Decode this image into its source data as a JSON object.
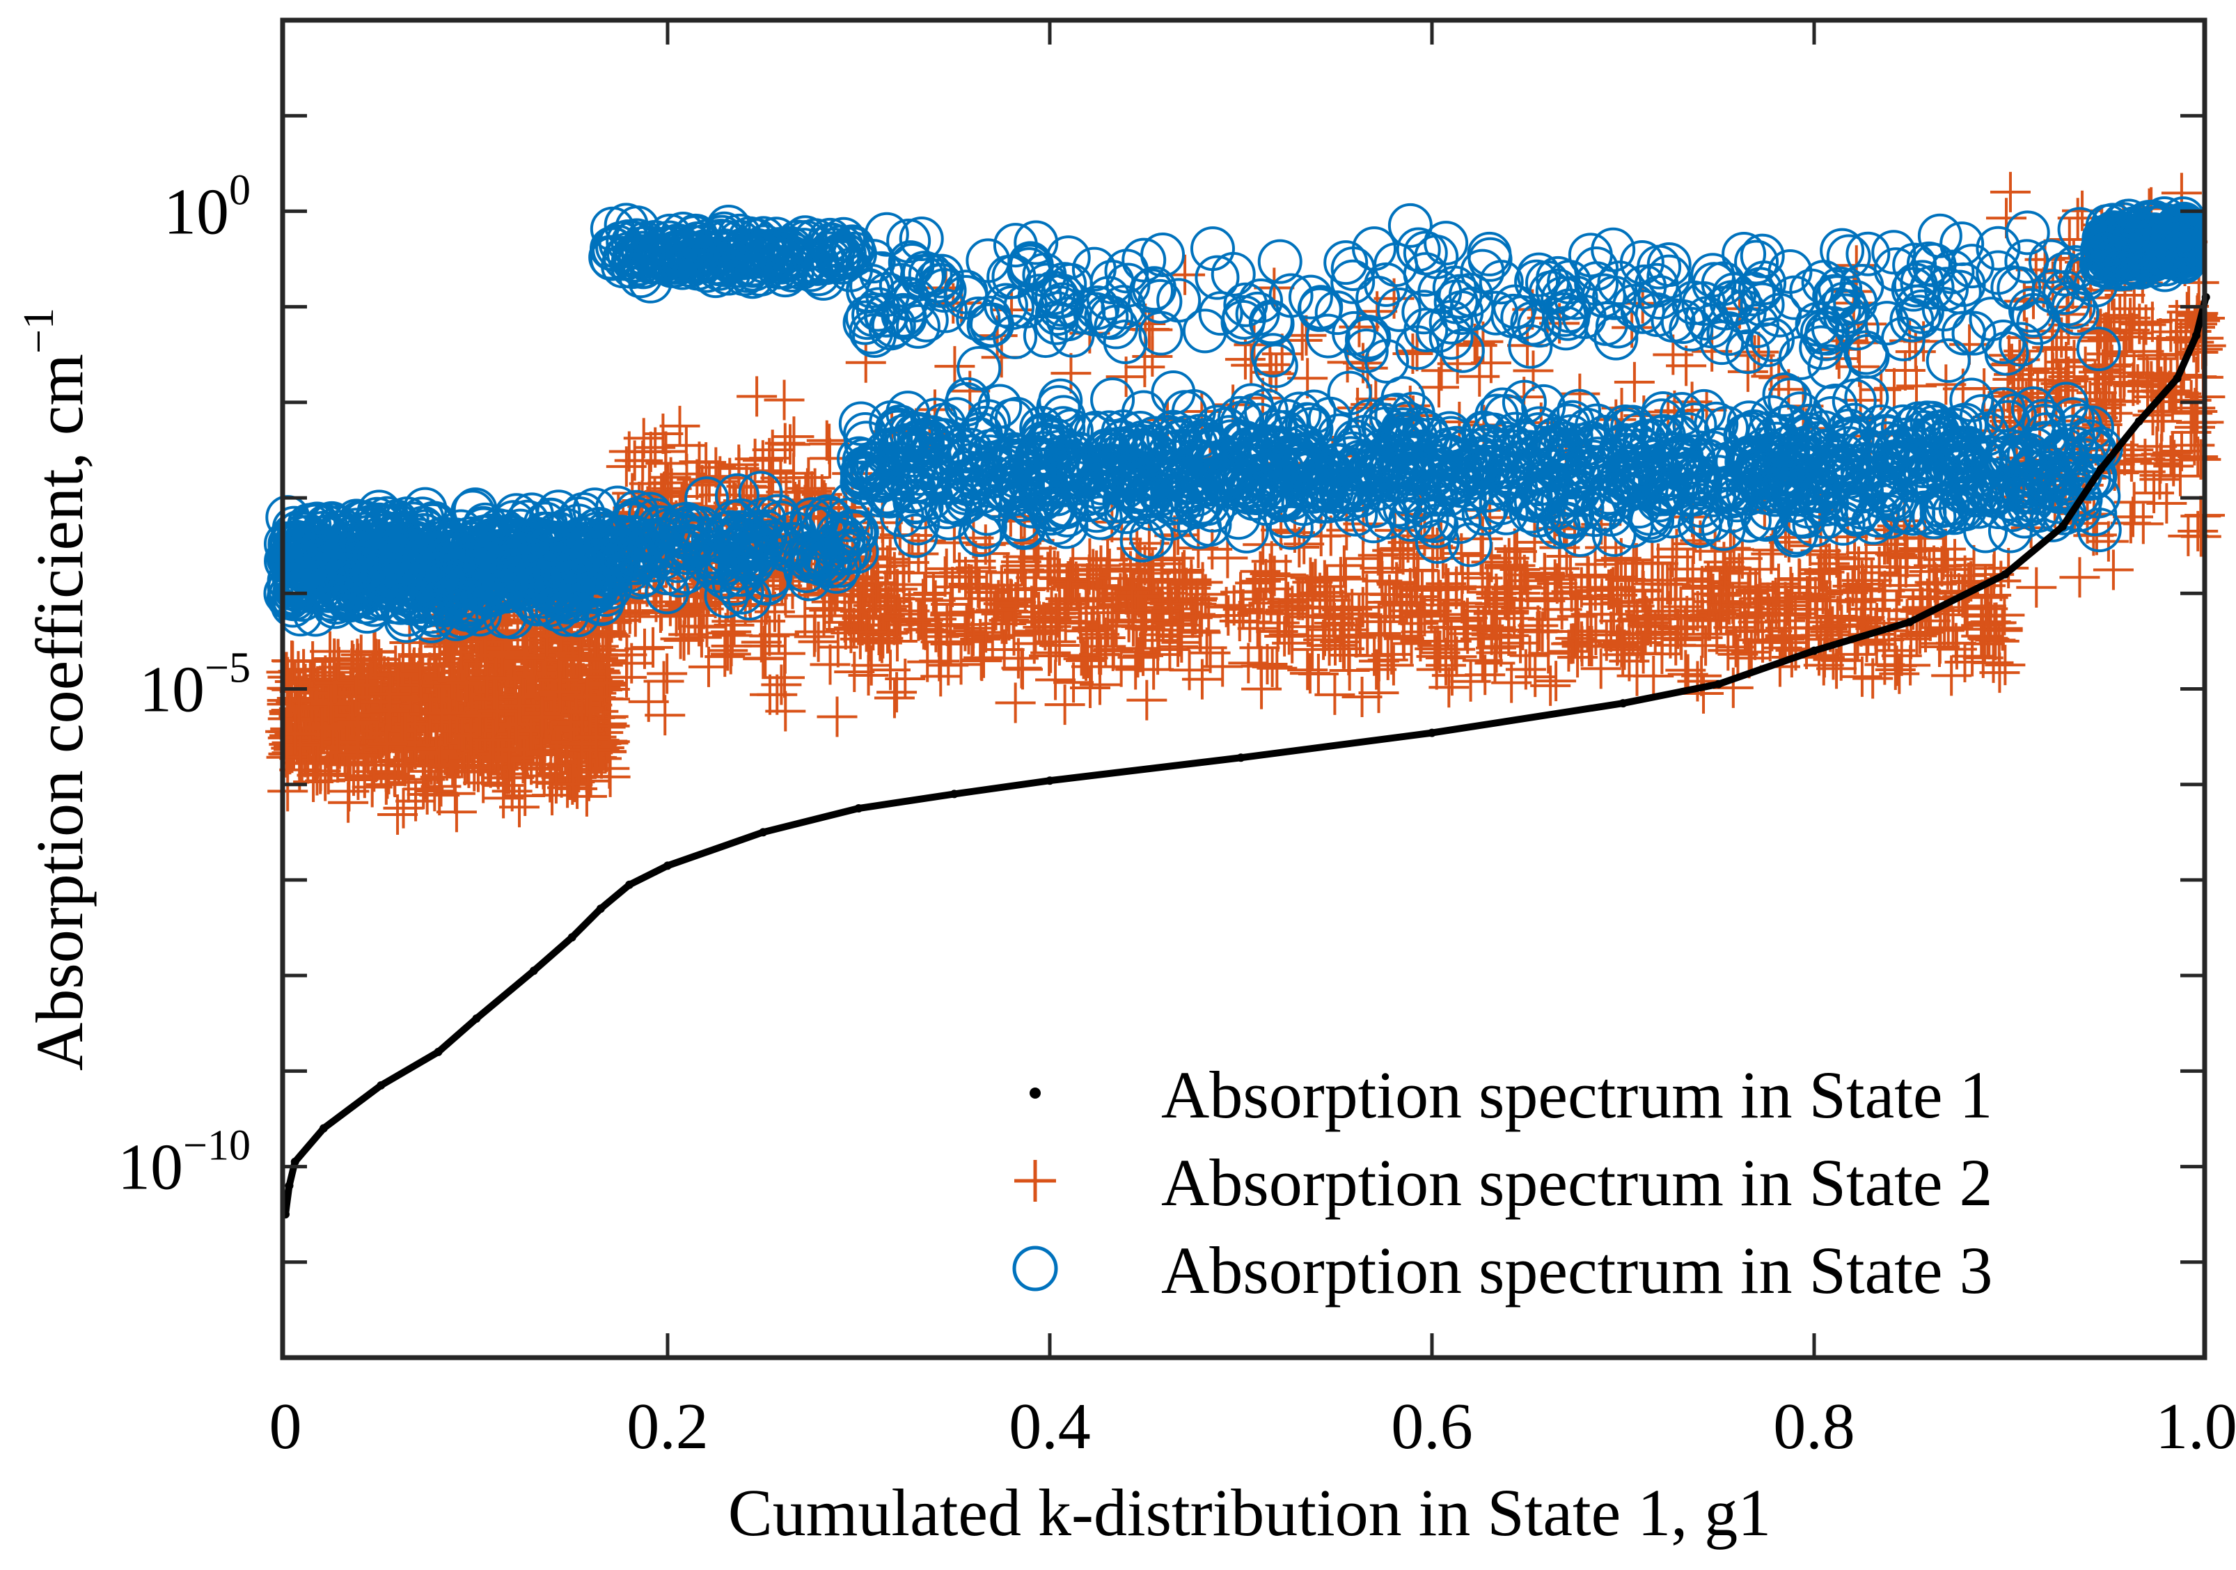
{
  "chart_data": {
    "type": "scatter",
    "title": "",
    "xlabel": "Cumulated k-distribution in State 1, g1",
    "ylabel": "Absorption coefficient, cm",
    "ylabel_exp": "−1",
    "xlim": [
      0,
      1.005
    ],
    "ylim_log10": [
      -12,
      2
    ],
    "yscale": "log",
    "grid": false,
    "legend_position": "bottom-right",
    "x_ticks": [
      {
        "value": 0,
        "label": "0"
      },
      {
        "value": 0.2,
        "label": "0.2"
      },
      {
        "value": 0.4,
        "label": "0.4"
      },
      {
        "value": 0.6,
        "label": "0.6"
      },
      {
        "value": 0.8,
        "label": "0.8"
      },
      {
        "value": 1.0,
        "label": "1.0"
      }
    ],
    "y_ticks": [
      {
        "log10": 0,
        "base": "10",
        "exp": "0"
      },
      {
        "log10": -5,
        "base": "10",
        "exp": "−5"
      },
      {
        "log10": -10,
        "base": "10",
        "exp": "−10"
      }
    ],
    "series": [
      {
        "name": "Absorption spectrum in State 1",
        "marker": "dot",
        "color": "#000000",
        "points_log10": [
          [
            0,
            -10.5
          ],
          [
            0.002,
            -10.2
          ],
          [
            0.005,
            -9.95
          ],
          [
            0.02,
            -9.6
          ],
          [
            0.05,
            -9.15
          ],
          [
            0.08,
            -8.8
          ],
          [
            0.1,
            -8.45
          ],
          [
            0.13,
            -7.95
          ],
          [
            0.15,
            -7.6
          ],
          [
            0.165,
            -7.3
          ],
          [
            0.18,
            -7.05
          ],
          [
            0.2,
            -6.85
          ],
          [
            0.25,
            -6.5
          ],
          [
            0.3,
            -6.25
          ],
          [
            0.35,
            -6.1
          ],
          [
            0.4,
            -5.96
          ],
          [
            0.5,
            -5.72
          ],
          [
            0.6,
            -5.46
          ],
          [
            0.7,
            -5.15
          ],
          [
            0.75,
            -4.95
          ],
          [
            0.8,
            -4.6
          ],
          [
            0.85,
            -4.3
          ],
          [
            0.9,
            -3.8
          ],
          [
            0.93,
            -3.3
          ],
          [
            0.95,
            -2.7
          ],
          [
            0.97,
            -2.2
          ],
          [
            0.99,
            -1.75
          ],
          [
            1.0,
            -1.3
          ],
          [
            1.005,
            -0.9
          ]
        ]
      },
      {
        "name": "Absorption spectrum in State 2",
        "marker": "plus",
        "color": "#D95319",
        "envelope_log10": [
          {
            "x": [
              0,
              0.17
            ],
            "y": [
              -6.4,
              -4.3
            ],
            "n": 900
          },
          {
            "x": [
              0.08,
              0.17
            ],
            "y": [
              -5.6,
              -3.5
            ],
            "n": 250
          },
          {
            "x": [
              0.17,
              0.3
            ],
            "y": [
              -5.6,
              -1.6
            ],
            "n": 350
          },
          {
            "x": [
              0.3,
              0.9
            ],
            "y": [
              -5.3,
              -3.0
            ],
            "n": 1000
          },
          {
            "x": [
              0.3,
              0.9
            ],
            "y": [
              -3.0,
              -0.3
            ],
            "n": 120
          },
          {
            "x": [
              0.9,
              1.005
            ],
            "y": [
              -4.2,
              0.6
            ],
            "n": 260
          }
        ]
      },
      {
        "name": "Absorption spectrum in State 3",
        "marker": "circle",
        "color": "#0072BD",
        "envelope_log10": [
          {
            "x": [
              0,
              0.17
            ],
            "y": [
              -4.4,
              -3.0
            ],
            "n": 700
          },
          {
            "x": [
              0.17,
              0.3
            ],
            "y": [
              -0.8,
              -0.1
            ],
            "n": 180
          },
          {
            "x": [
              0.17,
              0.3
            ],
            "y": [
              -4.2,
              -2.8
            ],
            "n": 160
          },
          {
            "x": [
              0.3,
              0.95
            ],
            "y": [
              -3.6,
              -1.8
            ],
            "n": 1100
          },
          {
            "x": [
              0.3,
              0.95
            ],
            "y": [
              -1.8,
              0
            ],
            "n": 300
          },
          {
            "x": [
              0.95,
              1.005
            ],
            "y": [
              -0.7,
              0
            ],
            "n": 220
          }
        ]
      }
    ]
  }
}
